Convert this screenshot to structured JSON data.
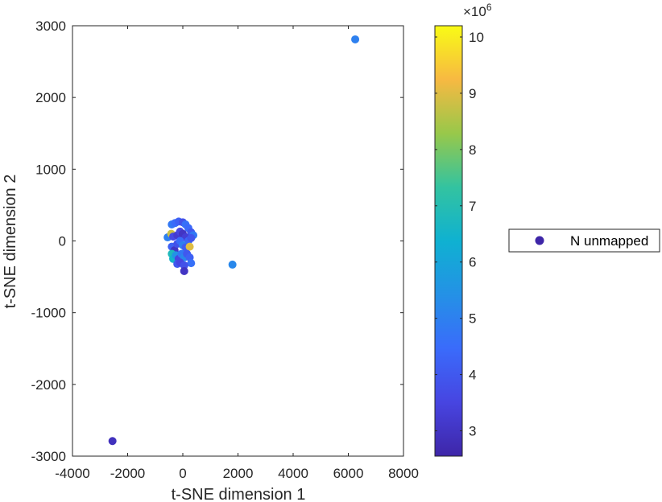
{
  "chart_data": {
    "type": "scatter",
    "xlabel": "t-SNE dimension 1",
    "ylabel": "t-SNE dimension 2",
    "xlim": [
      -4000,
      8000
    ],
    "ylim": [
      -3000,
      3000
    ],
    "xticks": [
      -4000,
      -2000,
      0,
      2000,
      4000,
      6000,
      8000
    ],
    "yticks": [
      -3000,
      -2000,
      -1000,
      0,
      1000,
      2000,
      3000
    ],
    "xtick_labels": [
      "-4000",
      "-2000",
      "0",
      "2000",
      "4000",
      "6000",
      "8000"
    ],
    "ytick_labels": [
      "-3000",
      "-2000",
      "-1000",
      "0",
      "1000",
      "2000",
      "3000"
    ],
    "grid": false,
    "colorbar": {
      "colormap": "parula",
      "range": [
        2.55,
        10.2
      ],
      "ticks": [
        3,
        4,
        5,
        6,
        7,
        8,
        9,
        10
      ],
      "tick_labels": [
        "3",
        "4",
        "5",
        "6",
        "7",
        "8",
        "9",
        "10"
      ],
      "exponent_base": "×10",
      "exponent_power": "6"
    },
    "legend": {
      "placement": "right",
      "entries": [
        {
          "name": "N unmapped",
          "color": "#3e26a8"
        }
      ]
    },
    "series": [
      {
        "name": "N unmapped",
        "points": [
          {
            "x": 6250,
            "y": 2810,
            "c": 5.0
          },
          {
            "x": -2550,
            "y": -2790,
            "c": 2.9
          },
          {
            "x": 1800,
            "y": -330,
            "c": 5.2
          },
          {
            "x": -400,
            "y": 230,
            "c": 4.8
          },
          {
            "x": -280,
            "y": 250,
            "c": 4.5
          },
          {
            "x": -150,
            "y": 270,
            "c": 4.2
          },
          {
            "x": 0,
            "y": 260,
            "c": 3.8
          },
          {
            "x": 100,
            "y": 230,
            "c": 4.6
          },
          {
            "x": 200,
            "y": 180,
            "c": 4.4
          },
          {
            "x": 300,
            "y": 120,
            "c": 4.0
          },
          {
            "x": 380,
            "y": 80,
            "c": 4.8
          },
          {
            "x": -550,
            "y": 50,
            "c": 5.0
          },
          {
            "x": -420,
            "y": 100,
            "c": 8.8
          },
          {
            "x": -350,
            "y": 60,
            "c": 3.6
          },
          {
            "x": -200,
            "y": 80,
            "c": 3.2
          },
          {
            "x": -100,
            "y": 130,
            "c": 3.5
          },
          {
            "x": 0,
            "y": 100,
            "c": 3.0
          },
          {
            "x": 100,
            "y": 50,
            "c": 3.3
          },
          {
            "x": 200,
            "y": 0,
            "c": 4.3
          },
          {
            "x": 300,
            "y": 40,
            "c": 3.9
          },
          {
            "x": -400,
            "y": -80,
            "c": 4.2
          },
          {
            "x": -300,
            "y": -130,
            "c": 3.0
          },
          {
            "x": -200,
            "y": -40,
            "c": 3.8
          },
          {
            "x": -100,
            "y": 0,
            "c": 4.5
          },
          {
            "x": 0,
            "y": -60,
            "c": 5.0
          },
          {
            "x": 100,
            "y": -90,
            "c": 4.1
          },
          {
            "x": 250,
            "y": -80,
            "c": 9.0
          },
          {
            "x": -400,
            "y": -180,
            "c": 6.8
          },
          {
            "x": -350,
            "y": -250,
            "c": 6.5
          },
          {
            "x": -250,
            "y": -200,
            "c": 5.5
          },
          {
            "x": -150,
            "y": -250,
            "c": 3.5
          },
          {
            "x": -50,
            "y": -180,
            "c": 4.8
          },
          {
            "x": 50,
            "y": -230,
            "c": 5.2
          },
          {
            "x": 150,
            "y": -180,
            "c": 4.0
          },
          {
            "x": 250,
            "y": -230,
            "c": 4.2
          },
          {
            "x": 300,
            "y": -310,
            "c": 4.6
          },
          {
            "x": -200,
            "y": -320,
            "c": 4.0
          },
          {
            "x": -100,
            "y": -300,
            "c": 3.5
          },
          {
            "x": 50,
            "y": -340,
            "c": 3.8
          },
          {
            "x": 50,
            "y": -420,
            "c": 3.0
          }
        ]
      }
    ]
  }
}
